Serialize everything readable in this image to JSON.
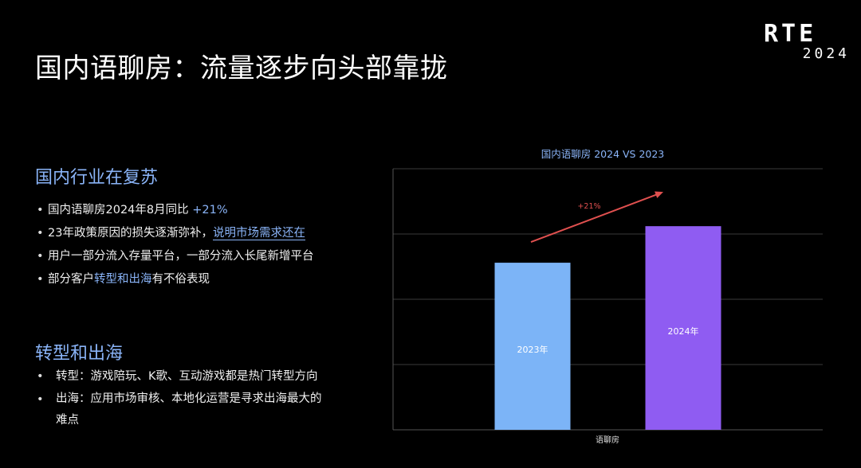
{
  "slide": {
    "title": "国内语聊房：流量逐步向头部靠拢"
  },
  "logo": {
    "top": "RTE",
    "year": "2024"
  },
  "section1": {
    "heading": "国内行业在复苏",
    "bullets": [
      {
        "prefix": "国内语聊房2024年8月同比 ",
        "highlight": "+21%",
        "suffix": ""
      },
      {
        "prefix": "23年政策原因的损失逐渐弥补，",
        "highlight": "说明市场需求还在",
        "suffix": ""
      },
      {
        "prefix": "用户一部分流入存量平台，一部分流入长尾新增平台",
        "highlight": "",
        "suffix": ""
      },
      {
        "prefix": "部分客户",
        "highlight": "转型和出海",
        "suffix": "有不俗表现"
      }
    ]
  },
  "section2": {
    "heading": "转型和出海",
    "bullets": [
      {
        "line1": "转型：游戏陪玩、K歌、互动游戏都是热门转型方向",
        "line2": ""
      },
      {
        "line1": "出海：应用市场审核、本地化运营是寻求出海最大的",
        "line2": "难点"
      }
    ]
  },
  "chart_data": {
    "type": "bar",
    "title": "国内语聊房 2024 VS 2023",
    "categories": [
      "语聊房"
    ],
    "xlabel": "语聊房",
    "ylim": [
      0,
      100
    ],
    "gridlines": [
      0,
      25,
      50,
      75,
      100
    ],
    "series": [
      {
        "name": "2023年",
        "value": 64,
        "color": "#7cb4f7"
      },
      {
        "name": "2024年",
        "value": 78,
        "color": "#8f5cf2"
      }
    ],
    "annotation": {
      "text": "+21%",
      "color": "#e0504f"
    },
    "grid": true,
    "axis_line_color": "#555555",
    "grid_color": "#3a3a3a"
  }
}
